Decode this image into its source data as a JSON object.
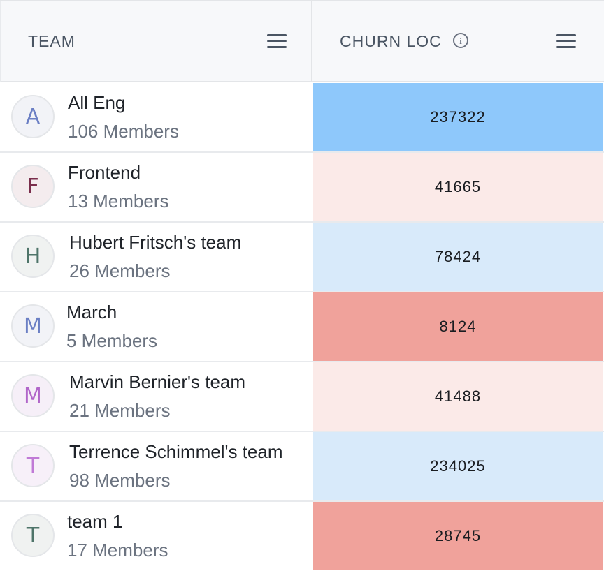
{
  "header": {
    "team_label": "TEAM",
    "churn_label": "CHURN LOC",
    "info_glyph": "i"
  },
  "rows": [
    {
      "initial": "A",
      "name": "All Eng",
      "members": "106 Members",
      "churn": "237322",
      "avatar_color": "#6b7fc4",
      "avatar_bg": "#f2f3f7",
      "cell_color": "#8ec8fb"
    },
    {
      "initial": "F",
      "name": "Frontend",
      "members": "13 Members",
      "churn": "41665",
      "avatar_color": "#7a2e4c",
      "avatar_bg": "#f4ecee",
      "cell_color": "#fbeae8"
    },
    {
      "initial": "H",
      "name": "Hubert Fritsch's team",
      "members": "26 Members",
      "churn": "78424",
      "avatar_color": "#4e7469",
      "avatar_bg": "#f0f2f1",
      "cell_color": "#d8eafa"
    },
    {
      "initial": "M",
      "name": "March",
      "members": "5 Members",
      "churn": "8124",
      "avatar_color": "#6b7fc4",
      "avatar_bg": "#f2f3f7",
      "cell_color": "#f0a29b"
    },
    {
      "initial": "M",
      "name": "Marvin Bernier's team",
      "members": "21 Members",
      "churn": "41488",
      "avatar_color": "#b166c9",
      "avatar_bg": "#f6eff8",
      "cell_color": "#fbeae8"
    },
    {
      "initial": "T",
      "name": "Terrence Schimmel's team",
      "members": "98 Members",
      "churn": "234025",
      "avatar_color": "#c07ad6",
      "avatar_bg": "#f7f0f9",
      "cell_color": "#d8eafa"
    },
    {
      "initial": "T",
      "name": "team 1",
      "members": "17 Members",
      "churn": "28745",
      "avatar_color": "#4e7469",
      "avatar_bg": "#f0f2f1",
      "cell_color": "#f0a29b"
    }
  ]
}
